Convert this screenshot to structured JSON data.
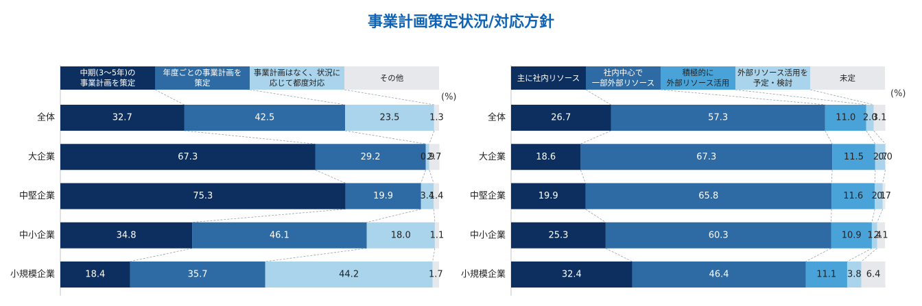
{
  "title": "事業計画策定状況/対応方針",
  "chart_data": [
    {
      "type": "bar",
      "orientation": "horizontal",
      "stacked": true,
      "unit": "(%)",
      "categories": [
        "全体",
        "大企業",
        "中堅企業",
        "中小企業",
        "小規模企業"
      ],
      "xlim": [
        0,
        100
      ],
      "series": [
        {
          "name": "中期(3～5年)の\n事業計画を策定",
          "color": "#0c2f5f",
          "values": [
            32.7,
            67.3,
            75.3,
            34.8,
            18.4
          ],
          "value_labels": [
            "32.7",
            "67.3",
            "75.3",
            "34.8",
            "18.4"
          ]
        },
        {
          "name": "年度ごとの事業計画を\n策定",
          "color": "#2e6aa4",
          "values": [
            42.5,
            29.2,
            19.9,
            46.1,
            35.7
          ],
          "value_labels": [
            "42.5",
            "29.2",
            "19.9",
            "46.1",
            "35.7"
          ]
        },
        {
          "name": "事業計画はなく、状況に\n応じて都度対応",
          "color": "#a9d4ec",
          "values": [
            23.5,
            0.9,
            3.4,
            18.0,
            44.2
          ],
          "value_labels": [
            "23.5",
            "0.9",
            "3.4",
            "18.0",
            "44.2"
          ]
        },
        {
          "name": "その他",
          "color": "#e6e8ec",
          "values": [
            1.3,
            2.7,
            1.4,
            1.1,
            1.7
          ],
          "value_labels": [
            "1.3",
            "2.7",
            "1.4",
            "1.1",
            "1.7"
          ]
        }
      ]
    },
    {
      "type": "bar",
      "orientation": "horizontal",
      "stacked": true,
      "unit": "(%)",
      "categories": [
        "全体",
        "大企業",
        "中堅企業",
        "中小企業",
        "小規模企業"
      ],
      "xlim": [
        0,
        100
      ],
      "series": [
        {
          "name": "主に社内リソース",
          "color": "#0c2f5f",
          "values": [
            26.7,
            18.6,
            19.9,
            25.3,
            32.4
          ],
          "value_labels": [
            "26.7",
            "18.6",
            "19.9",
            "25.3",
            "32.4"
          ]
        },
        {
          "name": "社内中心で\n一部外部リソース",
          "color": "#2e6aa4",
          "values": [
            57.3,
            67.3,
            65.8,
            60.3,
            46.4
          ],
          "value_labels": [
            "57.3",
            "67.3",
            "65.8",
            "60.3",
            "46.4"
          ]
        },
        {
          "name": "積極的に\n外部リソース活用",
          "color": "#4aa3d8",
          "values": [
            11.0,
            11.5,
            11.6,
            10.9,
            11.1
          ],
          "value_labels": [
            "11.0",
            "11.5",
            "11.6",
            "10.9",
            "11.1"
          ]
        },
        {
          "name": "外部リソース活用を\n予定・検討",
          "color": "#a9d4ec",
          "values": [
            2.0,
            2.7,
            2.1,
            1.4,
            3.8
          ],
          "value_labels": [
            "2.0",
            "2.7",
            "2.1",
            "1.4",
            "3.8"
          ]
        },
        {
          "name": "未定",
          "color": "#e6e8ec",
          "values": [
            3.1,
            0.0,
            0.7,
            2.1,
            6.4
          ],
          "value_labels": [
            "3.1",
            "0.0",
            "0.7",
            "2.1",
            "6.4"
          ]
        }
      ]
    }
  ]
}
